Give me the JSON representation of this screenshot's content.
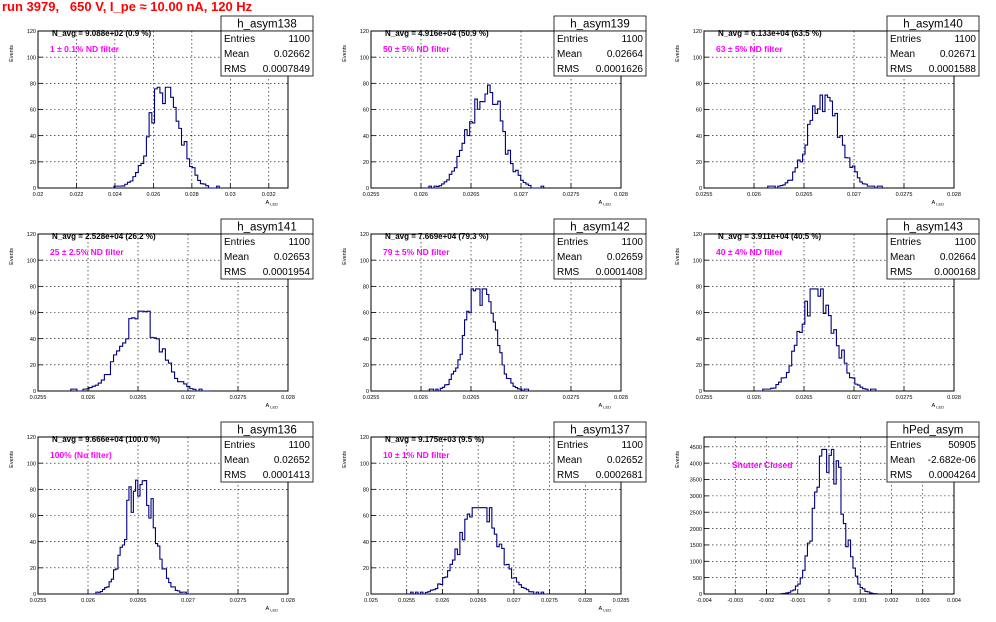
{
  "run_title": "run 3979,   650 V, I_pe ≈ 10.00 nA, 120 Hz",
  "colors": {
    "histogram": "#000080",
    "filter_label": "#ff00ff",
    "title": "#ff0000",
    "grid": "#000000"
  },
  "chart_data": [
    {
      "type": "histogram",
      "name": "h_asym138",
      "ylabel": "Events",
      "xlabel": "A_LED",
      "navg": "N_avg = 9.088e+02 (0.9 %)",
      "filter": "1 ± 0.1% ND filter",
      "stats": {
        "Entries": "1100",
        "Mean": "0.02662",
        "RMS": "0.0007849"
      },
      "xlim": [
        0.02,
        0.033
      ],
      "ylim": [
        0,
        120
      ],
      "yticks": [
        0,
        20,
        40,
        60,
        80,
        100,
        120
      ],
      "xticks": [
        0.02,
        0.022,
        0.024,
        0.026,
        0.028,
        0.03,
        0.032
      ],
      "xticklabels": [
        "0.02",
        "0.022",
        "0.024",
        "0.026",
        "0.028",
        "0.03",
        "0.032"
      ],
      "mean": 0.02662,
      "sigma": 0.00078,
      "peak": 77,
      "nbins": 40,
      "seed": 1
    },
    {
      "type": "histogram",
      "name": "h_asym139",
      "ylabel": "Events",
      "xlabel": "A_LED",
      "navg": "N_avg = 4.916e+04 (50.9 %)",
      "filter": "50 ± 5% ND filter",
      "stats": {
        "Entries": "1100",
        "Mean": "0.02664",
        "RMS": "0.0001626"
      },
      "xlim": [
        0.0255,
        0.028
      ],
      "ylim": [
        0,
        120
      ],
      "yticks": [
        0,
        20,
        40,
        60,
        80,
        100,
        120
      ],
      "xticks": [
        0.0255,
        0.026,
        0.0265,
        0.027,
        0.0275,
        0.028
      ],
      "xticklabels": [
        "0.0255",
        "0.026",
        "0.0265",
        "0.027",
        "0.0275",
        "0.028"
      ],
      "mean": 0.02664,
      "sigma": 0.000163,
      "peak": 80,
      "nbins": 46,
      "seed": 2
    },
    {
      "type": "histogram",
      "name": "h_asym140",
      "ylabel": "Events",
      "xlabel": "A_LED",
      "navg": "N_avg = 6.133e+04 (63.5 %)",
      "filter": "63 ± 5% ND filter",
      "stats": {
        "Entries": "1100",
        "Mean": "0.02671",
        "RMS": "0.0001588"
      },
      "xlim": [
        0.0255,
        0.028
      ],
      "ylim": [
        0,
        120
      ],
      "yticks": [
        0,
        20,
        40,
        60,
        80,
        100,
        120
      ],
      "xticks": [
        0.0255,
        0.026,
        0.0265,
        0.027,
        0.0275,
        0.028
      ],
      "xticklabels": [
        "0.0255",
        "0.026",
        "0.0265",
        "0.027",
        "0.0275",
        "0.028"
      ],
      "mean": 0.02671,
      "sigma": 0.000159,
      "peak": 71,
      "nbins": 46,
      "seed": 3
    },
    {
      "type": "histogram",
      "name": "h_asym141",
      "ylabel": "Events",
      "xlabel": "A_LED",
      "navg": "N_avg = 2.528e+04 (26.2 %)",
      "filter": "25 ± 2.5% ND filter",
      "stats": {
        "Entries": "1100",
        "Mean": "0.02653",
        "RMS": "0.0001954"
      },
      "xlim": [
        0.0255,
        0.028
      ],
      "ylim": [
        0,
        120
      ],
      "yticks": [
        0,
        20,
        40,
        60,
        80,
        100,
        120
      ],
      "xticks": [
        0.0255,
        0.026,
        0.0265,
        0.027,
        0.0275,
        0.028
      ],
      "xticklabels": [
        "0.0255",
        "0.026",
        "0.0265",
        "0.027",
        "0.0275",
        "0.028"
      ],
      "mean": 0.02653,
      "sigma": 0.000195,
      "peak": 61,
      "nbins": 46,
      "seed": 4
    },
    {
      "type": "histogram",
      "name": "h_asym142",
      "ylabel": "Events",
      "xlabel": "A_LED",
      "navg": "N_avg = 7.669e+04 (79.3 %)",
      "filter": "79 ± 5% ND filter",
      "stats": {
        "Entries": "1100",
        "Mean": "0.02659",
        "RMS": "0.0001408"
      },
      "xlim": [
        0.0255,
        0.028
      ],
      "ylim": [
        0,
        120
      ],
      "yticks": [
        0,
        20,
        40,
        60,
        80,
        100,
        120
      ],
      "xticks": [
        0.0255,
        0.026,
        0.0265,
        0.027,
        0.0275,
        0.028
      ],
      "xticklabels": [
        "0.0255",
        "0.026",
        "0.0265",
        "0.027",
        "0.0275",
        "0.028"
      ],
      "mean": 0.02659,
      "sigma": 0.000141,
      "peak": 78,
      "nbins": 46,
      "seed": 5
    },
    {
      "type": "histogram",
      "name": "h_asym143",
      "ylabel": "Events",
      "xlabel": "A_LED",
      "navg": "N_avg = 3.911e+04 (40.5 %)",
      "filter": "40 ± 4% ND filter",
      "stats": {
        "Entries": "1100",
        "Mean": "0.02664",
        "RMS": "0.000168"
      },
      "xlim": [
        0.0255,
        0.028
      ],
      "ylim": [
        0,
        120
      ],
      "yticks": [
        0,
        20,
        40,
        60,
        80,
        100,
        120
      ],
      "xticks": [
        0.0255,
        0.026,
        0.0265,
        0.027,
        0.0275,
        0.028
      ],
      "xticklabels": [
        "0.0255",
        "0.026",
        "0.0265",
        "0.027",
        "0.0275",
        "0.028"
      ],
      "mean": 0.02664,
      "sigma": 0.000168,
      "peak": 78,
      "nbins": 46,
      "seed": 6
    },
    {
      "type": "histogram",
      "name": "h_asym136",
      "ylabel": "Events",
      "xlabel": "A_LED",
      "navg": "N_avg = 9.666e+04 (100.0 %)",
      "filter": "100% (No filter)",
      "stats": {
        "Entries": "1100",
        "Mean": "0.02652",
        "RMS": "0.0001413"
      },
      "xlim": [
        0.0255,
        0.028
      ],
      "ylim": [
        0,
        120
      ],
      "yticks": [
        0,
        20,
        40,
        60,
        80,
        100,
        120
      ],
      "xticks": [
        0.0255,
        0.026,
        0.0265,
        0.027,
        0.0275,
        0.028
      ],
      "xticklabels": [
        "0.0255",
        "0.026",
        "0.0265",
        "0.027",
        "0.0275",
        "0.028"
      ],
      "mean": 0.02652,
      "sigma": 0.000141,
      "peak": 87,
      "nbins": 46,
      "seed": 7
    },
    {
      "type": "histogram",
      "name": "h_asym137",
      "ylabel": "Events",
      "xlabel": "A_LED",
      "navg": "N_avg = 9.175e+03 (9.5 %)",
      "filter": "10 ± 1% ND filter",
      "stats": {
        "Entries": "1100",
        "Mean": "0.02652",
        "RMS": "0.0002681"
      },
      "xlim": [
        0.025,
        0.0285
      ],
      "ylim": [
        0,
        120
      ],
      "yticks": [
        0,
        20,
        40,
        60,
        80,
        100,
        120
      ],
      "xticks": [
        0.025,
        0.0255,
        0.026,
        0.0265,
        0.027,
        0.0275,
        0.028,
        0.0285
      ],
      "xticklabels": [
        "0.025",
        "0.0255",
        "0.026",
        "0.0265",
        "0.027",
        "0.0275",
        "0.028",
        "0.0285"
      ],
      "mean": 0.02652,
      "sigma": 0.000268,
      "peak": 66,
      "nbins": 56,
      "seed": 8
    },
    {
      "type": "histogram",
      "name": "hPed_asym",
      "ylabel": "Events",
      "xlabel": "",
      "navg": "",
      "filter": "Shutter Closed",
      "stats": {
        "Entries": "50905",
        "Mean": "-2.682e-06",
        "RMS": "0.0004264"
      },
      "xlim": [
        -0.004,
        0.004
      ],
      "ylim": [
        0,
        4800
      ],
      "yticks": [
        0,
        500,
        1000,
        1500,
        2000,
        2500,
        3000,
        3500,
        4000,
        4500
      ],
      "xticks": [
        -0.004,
        -0.003,
        -0.002,
        -0.001,
        0,
        0.001,
        0.002,
        0.003,
        0.004
      ],
      "xticklabels": [
        "-0.004",
        "-0.003",
        "-0.002",
        "-0.001",
        "0",
        "0.001",
        "0.002",
        "0.003",
        "0.004"
      ],
      "mean": 0.0,
      "sigma": 0.000426,
      "peak": 4420,
      "nbins": 40,
      "seed": 9
    }
  ]
}
